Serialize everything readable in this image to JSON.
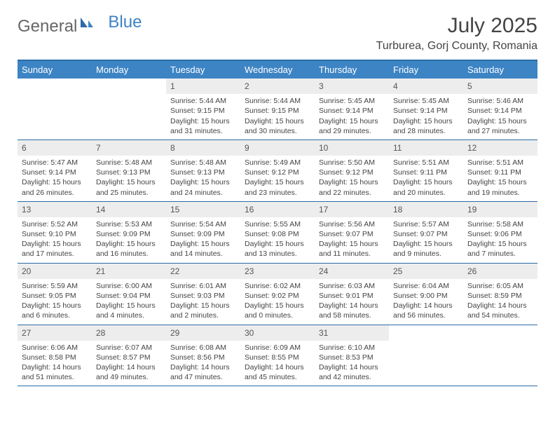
{
  "logo": {
    "text1": "General",
    "text2": "Blue"
  },
  "title": "July 2025",
  "location": "Turburea, Gorj County, Romania",
  "colors": {
    "header_bg": "#3d84c4",
    "border": "#2a6ca8",
    "daynum_bg": "#ededed"
  },
  "day_headers": [
    "Sunday",
    "Monday",
    "Tuesday",
    "Wednesday",
    "Thursday",
    "Friday",
    "Saturday"
  ],
  "weeks": [
    [
      null,
      null,
      {
        "n": "1",
        "sr": "5:44 AM",
        "ss": "9:15 PM",
        "dl": "15 hours and 31 minutes."
      },
      {
        "n": "2",
        "sr": "5:44 AM",
        "ss": "9:15 PM",
        "dl": "15 hours and 30 minutes."
      },
      {
        "n": "3",
        "sr": "5:45 AM",
        "ss": "9:14 PM",
        "dl": "15 hours and 29 minutes."
      },
      {
        "n": "4",
        "sr": "5:45 AM",
        "ss": "9:14 PM",
        "dl": "15 hours and 28 minutes."
      },
      {
        "n": "5",
        "sr": "5:46 AM",
        "ss": "9:14 PM",
        "dl": "15 hours and 27 minutes."
      }
    ],
    [
      {
        "n": "6",
        "sr": "5:47 AM",
        "ss": "9:14 PM",
        "dl": "15 hours and 26 minutes."
      },
      {
        "n": "7",
        "sr": "5:48 AM",
        "ss": "9:13 PM",
        "dl": "15 hours and 25 minutes."
      },
      {
        "n": "8",
        "sr": "5:48 AM",
        "ss": "9:13 PM",
        "dl": "15 hours and 24 minutes."
      },
      {
        "n": "9",
        "sr": "5:49 AM",
        "ss": "9:12 PM",
        "dl": "15 hours and 23 minutes."
      },
      {
        "n": "10",
        "sr": "5:50 AM",
        "ss": "9:12 PM",
        "dl": "15 hours and 22 minutes."
      },
      {
        "n": "11",
        "sr": "5:51 AM",
        "ss": "9:11 PM",
        "dl": "15 hours and 20 minutes."
      },
      {
        "n": "12",
        "sr": "5:51 AM",
        "ss": "9:11 PM",
        "dl": "15 hours and 19 minutes."
      }
    ],
    [
      {
        "n": "13",
        "sr": "5:52 AM",
        "ss": "9:10 PM",
        "dl": "15 hours and 17 minutes."
      },
      {
        "n": "14",
        "sr": "5:53 AM",
        "ss": "9:09 PM",
        "dl": "15 hours and 16 minutes."
      },
      {
        "n": "15",
        "sr": "5:54 AM",
        "ss": "9:09 PM",
        "dl": "15 hours and 14 minutes."
      },
      {
        "n": "16",
        "sr": "5:55 AM",
        "ss": "9:08 PM",
        "dl": "15 hours and 13 minutes."
      },
      {
        "n": "17",
        "sr": "5:56 AM",
        "ss": "9:07 PM",
        "dl": "15 hours and 11 minutes."
      },
      {
        "n": "18",
        "sr": "5:57 AM",
        "ss": "9:07 PM",
        "dl": "15 hours and 9 minutes."
      },
      {
        "n": "19",
        "sr": "5:58 AM",
        "ss": "9:06 PM",
        "dl": "15 hours and 7 minutes."
      }
    ],
    [
      {
        "n": "20",
        "sr": "5:59 AM",
        "ss": "9:05 PM",
        "dl": "15 hours and 6 minutes."
      },
      {
        "n": "21",
        "sr": "6:00 AM",
        "ss": "9:04 PM",
        "dl": "15 hours and 4 minutes."
      },
      {
        "n": "22",
        "sr": "6:01 AM",
        "ss": "9:03 PM",
        "dl": "15 hours and 2 minutes."
      },
      {
        "n": "23",
        "sr": "6:02 AM",
        "ss": "9:02 PM",
        "dl": "15 hours and 0 minutes."
      },
      {
        "n": "24",
        "sr": "6:03 AM",
        "ss": "9:01 PM",
        "dl": "14 hours and 58 minutes."
      },
      {
        "n": "25",
        "sr": "6:04 AM",
        "ss": "9:00 PM",
        "dl": "14 hours and 56 minutes."
      },
      {
        "n": "26",
        "sr": "6:05 AM",
        "ss": "8:59 PM",
        "dl": "14 hours and 54 minutes."
      }
    ],
    [
      {
        "n": "27",
        "sr": "6:06 AM",
        "ss": "8:58 PM",
        "dl": "14 hours and 51 minutes."
      },
      {
        "n": "28",
        "sr": "6:07 AM",
        "ss": "8:57 PM",
        "dl": "14 hours and 49 minutes."
      },
      {
        "n": "29",
        "sr": "6:08 AM",
        "ss": "8:56 PM",
        "dl": "14 hours and 47 minutes."
      },
      {
        "n": "30",
        "sr": "6:09 AM",
        "ss": "8:55 PM",
        "dl": "14 hours and 45 minutes."
      },
      {
        "n": "31",
        "sr": "6:10 AM",
        "ss": "8:53 PM",
        "dl": "14 hours and 42 minutes."
      },
      null,
      null
    ]
  ],
  "labels": {
    "sunrise": "Sunrise:",
    "sunset": "Sunset:",
    "daylight": "Daylight:"
  }
}
